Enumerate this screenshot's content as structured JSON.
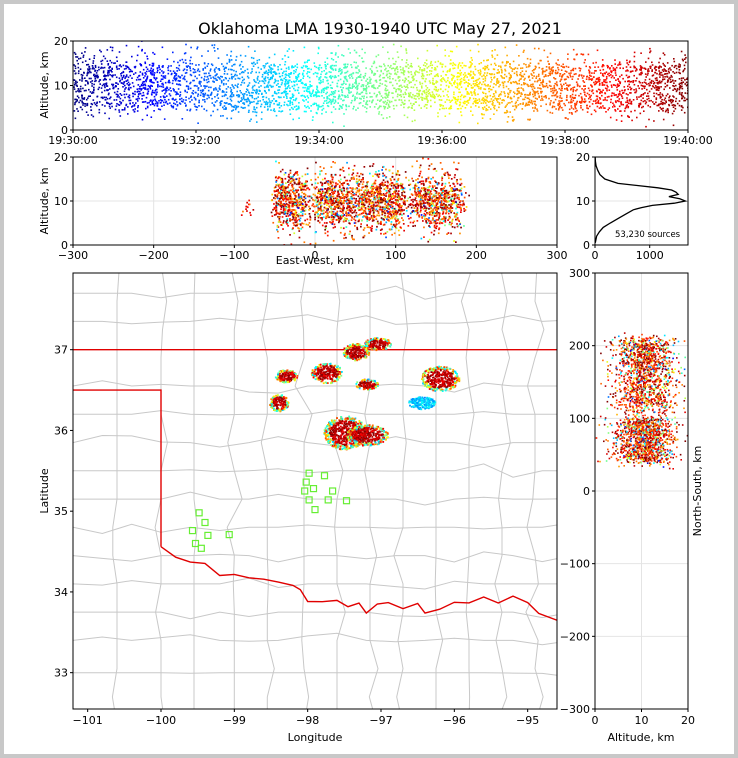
{
  "title": "Oklahoma LMA 1930-1940 UTC May 27, 2021",
  "source_count_label": "53,230 sources",
  "colors": {
    "state_border": "#e00000",
    "county_lines": "#c8c8c8",
    "station_marker": "#66ee33"
  },
  "chart_data": [
    {
      "id": "time_altitude",
      "type": "scatter",
      "title": "",
      "xlabel": "",
      "ylabel": "Altitude, km",
      "xlim": [
        "19:30:00",
        "19:40:00"
      ],
      "ylim": [
        0,
        20
      ],
      "xticks": [
        "19:30:00",
        "19:32:00",
        "19:34:00",
        "19:36:00",
        "19:38:00",
        "19:40:00"
      ],
      "yticks": [
        "0",
        "10",
        "20"
      ],
      "colormap": "jet (by time)",
      "altitude_band_km": [
        2,
        19
      ],
      "dense_core_km": [
        5,
        15
      ]
    },
    {
      "id": "ew_altitude",
      "type": "scatter",
      "xlabel": "East-West, km",
      "ylabel": "Altitude, km",
      "xlim": [
        -300,
        300
      ],
      "ylim": [
        0,
        20
      ],
      "xticks": [
        "−300",
        "−200",
        "−100",
        "0",
        "100",
        "200",
        "300"
      ],
      "yticks": [
        "0",
        "10",
        "20"
      ],
      "clusters_ew_km": [
        [
          -50,
          -10
        ],
        [
          0,
          110
        ],
        [
          120,
          180
        ]
      ]
    },
    {
      "id": "altitude_histogram",
      "type": "line",
      "xlabel": "",
      "ylabel": "",
      "xlim": [
        0,
        1700
      ],
      "ylim": [
        0,
        20
      ],
      "xticks": [
        "0",
        "1000"
      ],
      "yticks": [
        "0",
        "10",
        "20"
      ],
      "altitude_km": [
        0.5,
        2,
        3,
        4,
        5,
        6,
        7,
        8,
        8.5,
        9,
        9.5,
        10,
        10.5,
        11,
        11.5,
        12,
        12.5,
        13,
        14,
        15,
        16,
        17,
        18,
        19,
        20
      ],
      "count": [
        5,
        30,
        80,
        150,
        280,
        420,
        560,
        700,
        850,
        1050,
        1450,
        1650,
        1550,
        1350,
        1520,
        1480,
        1400,
        1150,
        420,
        180,
        90,
        50,
        20,
        8,
        3
      ]
    },
    {
      "id": "plan_view",
      "type": "scatter",
      "xlabel": "Longitude",
      "ylabel": "Latitude",
      "xlim": [
        -101.2,
        -94.6
      ],
      "ylim": [
        32.55,
        37.95
      ],
      "xticks": [
        "−101",
        "−100",
        "−99",
        "−98",
        "−97",
        "−96",
        "−95"
      ],
      "yticks": [
        "33",
        "34",
        "35",
        "36",
        "37"
      ],
      "storm_cells": [
        {
          "lon": -98.3,
          "lat": 36.68
        },
        {
          "lon": -98.4,
          "lat": 36.35
        },
        {
          "lon": -97.75,
          "lat": 36.72
        },
        {
          "lon": -97.35,
          "lat": 36.98
        },
        {
          "lon": -97.05,
          "lat": 37.08
        },
        {
          "lon": -97.2,
          "lat": 36.58
        },
        {
          "lon": -97.5,
          "lat": 35.98
        },
        {
          "lon": -97.2,
          "lat": 35.95
        },
        {
          "lon": -96.2,
          "lat": 36.65
        },
        {
          "lon": -96.45,
          "lat": 36.35
        }
      ],
      "stations": [
        [
          -99.48,
          34.98
        ],
        [
          -99.4,
          34.86
        ],
        [
          -99.57,
          34.76
        ],
        [
          -99.36,
          34.7
        ],
        [
          -99.07,
          34.71
        ],
        [
          -99.53,
          34.6
        ],
        [
          -99.45,
          34.54
        ],
        [
          -97.98,
          35.47
        ],
        [
          -98.02,
          35.36
        ],
        [
          -97.77,
          35.44
        ],
        [
          -98.04,
          35.25
        ],
        [
          -97.92,
          35.28
        ],
        [
          -97.66,
          35.25
        ],
        [
          -97.98,
          35.14
        ],
        [
          -97.72,
          35.14
        ],
        [
          -97.9,
          35.02
        ],
        [
          -97.47,
          35.13
        ]
      ]
    },
    {
      "id": "ns_altitude",
      "type": "scatter",
      "xlabel": "Altitude, km",
      "ylabel": "North-South, km",
      "xlim": [
        0,
        20
      ],
      "ylim": [
        -300,
        300
      ],
      "xticks": [
        "0",
        "10",
        "20"
      ],
      "yticks": [
        "−300",
        "−200",
        "−100",
        "0",
        "100",
        "200",
        "300"
      ],
      "clusters_ns_km": [
        [
          40,
          100
        ],
        [
          110,
          160
        ],
        [
          160,
          210
        ]
      ]
    }
  ]
}
